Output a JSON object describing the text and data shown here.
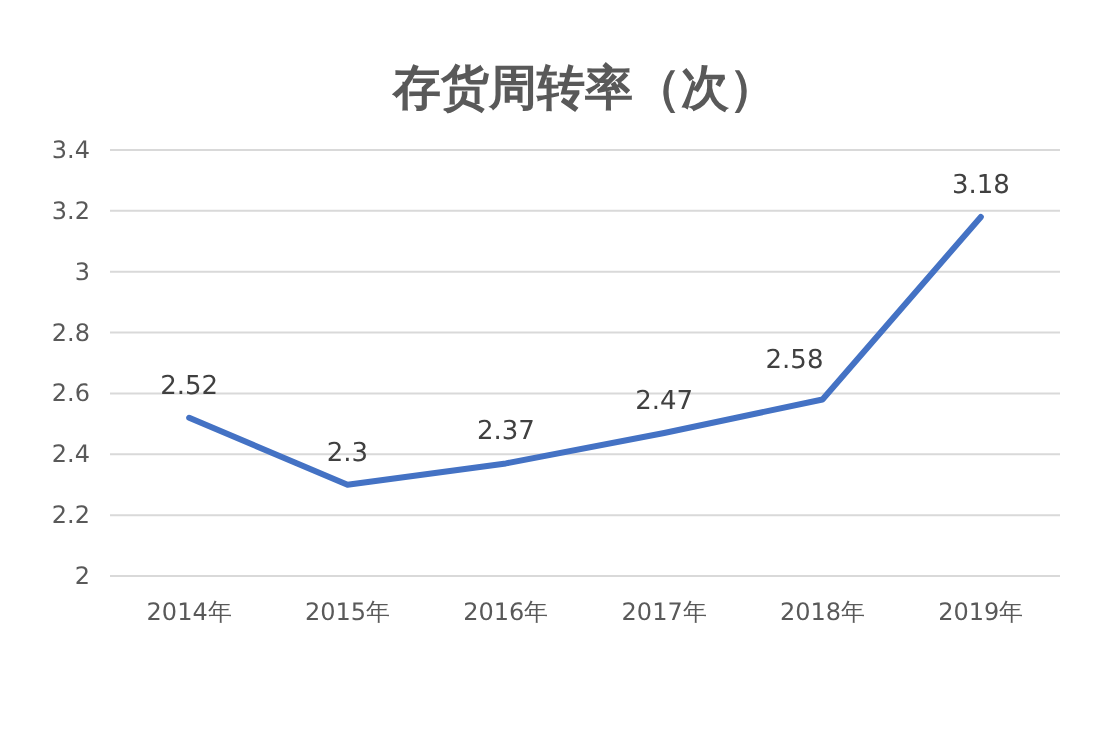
{
  "chart_data": {
    "type": "line",
    "title": "存货周转率（次）",
    "categories": [
      "2014年",
      "2015年",
      "2016年",
      "2017年",
      "2018年",
      "2019年"
    ],
    "series": [
      {
        "color": "#4472c4",
        "values": [
          2.52,
          2.3,
          2.37,
          2.47,
          2.58,
          3.18
        ]
      }
    ],
    "ylim": [
      2,
      3.4
    ],
    "yticks": [
      2,
      2.2,
      2.4,
      2.6,
      2.8,
      3,
      3.2,
      3.4
    ],
    "grid": "y",
    "data_labels": true,
    "line_style": "solid"
  }
}
